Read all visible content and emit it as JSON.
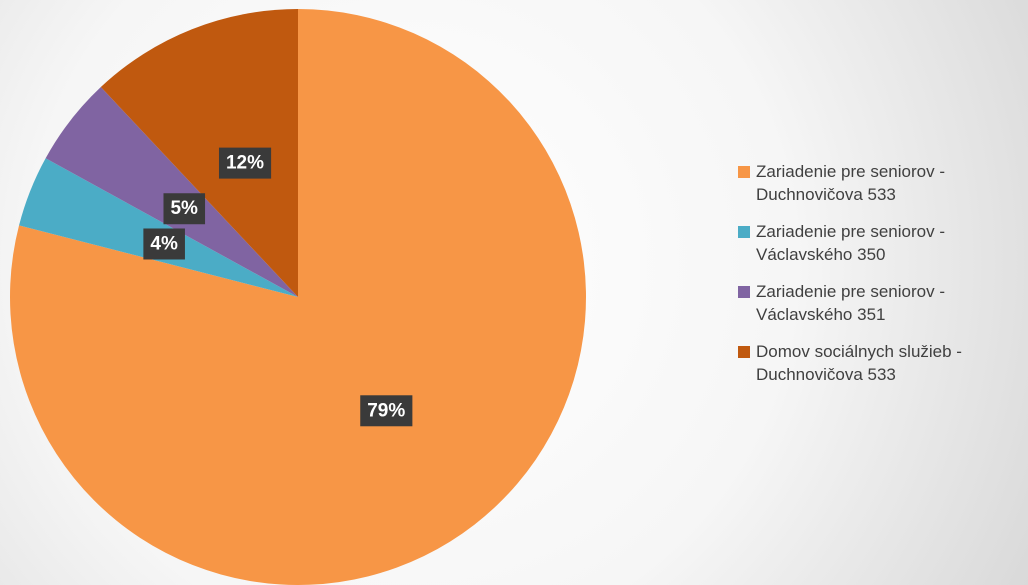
{
  "chart_data": {
    "type": "pie",
    "categories": [
      "Zariadenie pre seniorov - Duchnovičova 533",
      "Zariadenie pre seniorov - Václavského 350",
      "Zariadenie pre seniorov - Václavského 351",
      "Domov sociálnych služieb - Duchnovičova 533"
    ],
    "values": [
      79,
      4,
      5,
      12
    ],
    "value_labels": [
      "79%",
      "4%",
      "5%",
      "12%"
    ],
    "colors": [
      "#f79646",
      "#4bacc6",
      "#8064a2",
      "#c0590f"
    ],
    "legend": "right"
  }
}
